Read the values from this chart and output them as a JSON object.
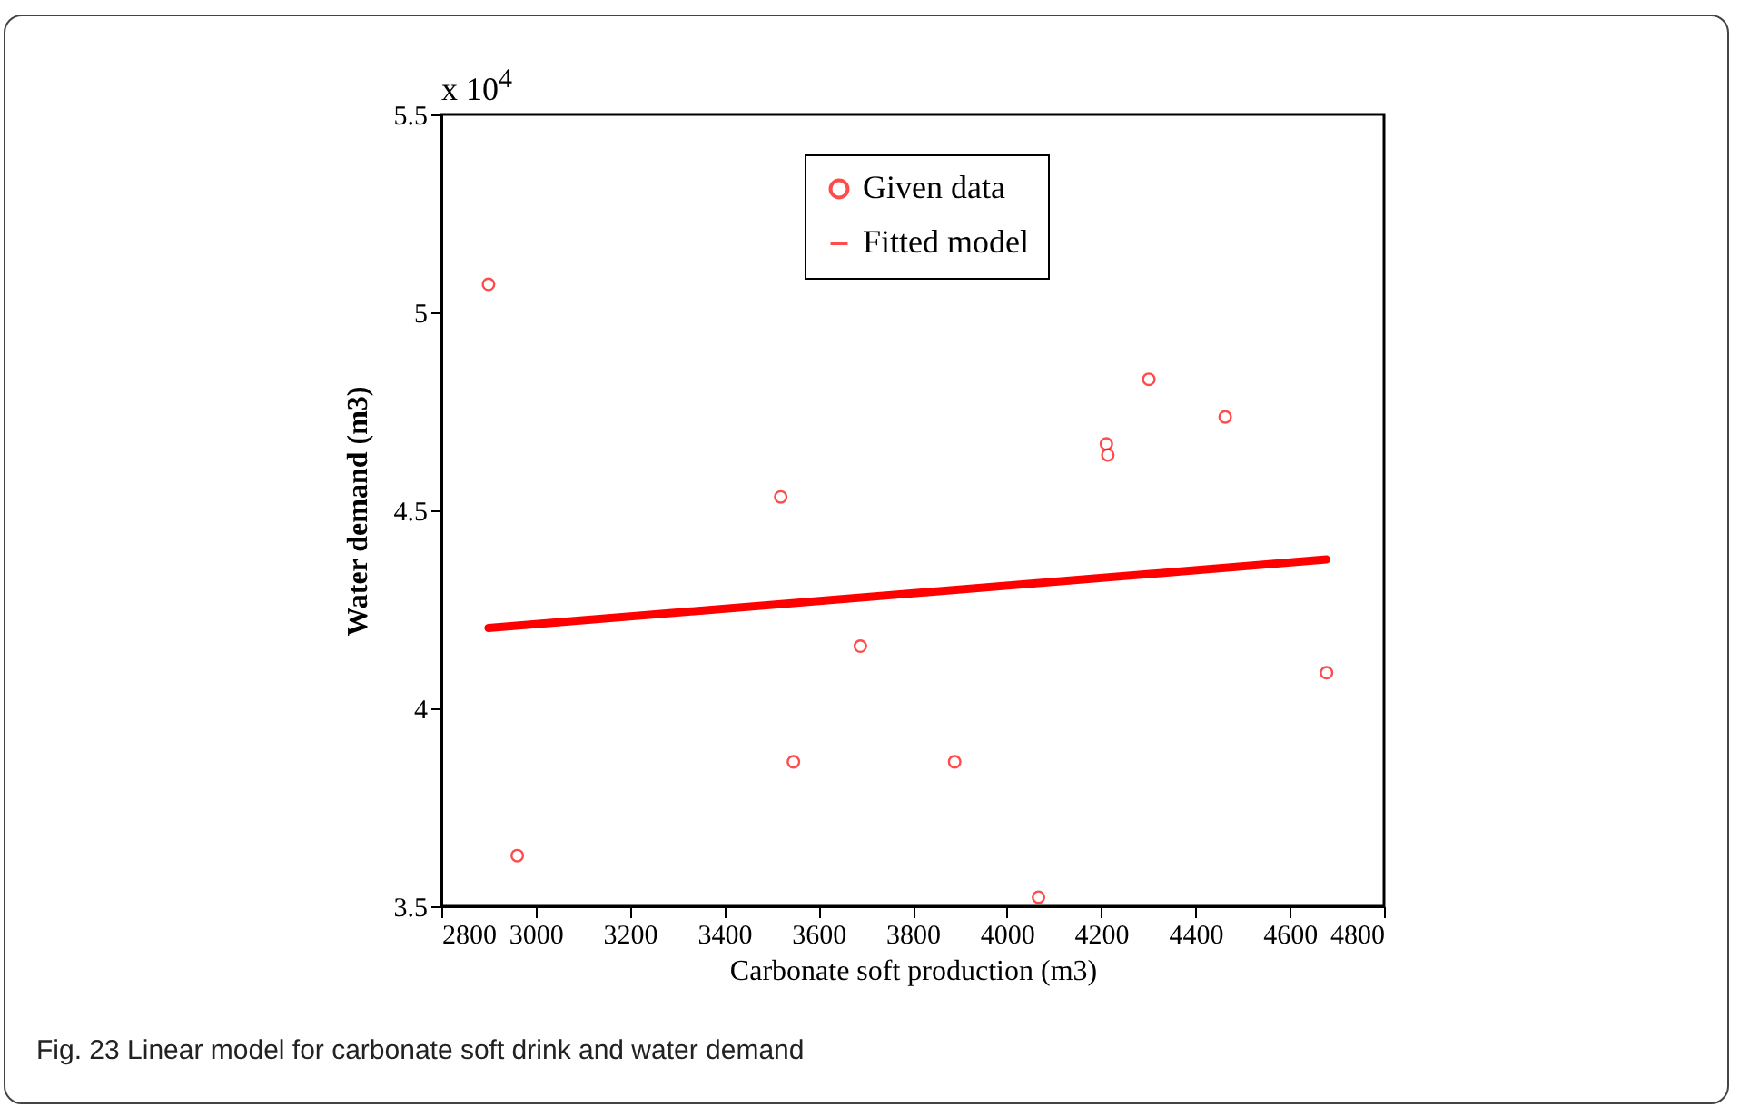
{
  "chart_data": {
    "type": "scatter",
    "xlabel": "Carbonate soft production (m3)",
    "ylabel": "Water demand  (m3)",
    "annotations": [
      "x 10$^{4}$",
      "Fig. 23 Linear model for carbonate soft drink and water demand"
    ],
    "xlim": [
      2800,
      4800
    ],
    "xticks": [
      2800,
      3000,
      3200,
      3400,
      3600,
      3800,
      4000,
      4200,
      4400,
      4600,
      4800
    ],
    "ylim": [
      3.5,
      5.5
    ],
    "yticks": [
      3.5,
      4,
      4.5,
      5,
      5.5
    ],
    "legend": "top",
    "grid": false,
    "series": [
      {
        "name": "Given data",
        "marker": "circle",
        "color": "#ff0000",
        "x": [
          2900,
          2961,
          3520,
          3547,
          3689,
          3889,
          4067,
          4211,
          4214,
          4301,
          4463,
          4678
        ],
        "values": [
          5.071,
          3.628,
          4.534,
          3.865,
          4.157,
          3.865,
          3.523,
          4.668,
          4.64,
          4.831,
          4.736,
          4.09
        ]
      },
      {
        "name": "Fitted model",
        "type": "line",
        "marker": "none",
        "color": "#ff0000",
        "x": [
          2900,
          4678
        ],
        "values": [
          4.203,
          4.376
        ]
      }
    ]
  }
}
